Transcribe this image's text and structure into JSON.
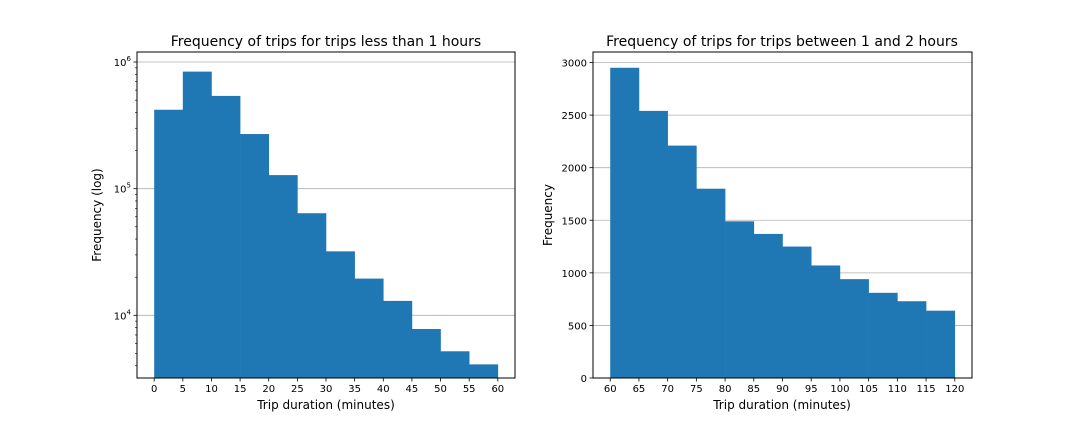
{
  "colors": {
    "bar": "#1f77b4",
    "grid": "#b0b0b0",
    "axis": "#000000"
  },
  "chart_data": [
    {
      "type": "bar",
      "title": "Frequency of trips for trips less than 1 hours",
      "xlabel": "Trip duration (minutes)",
      "ylabel": "Frequency (log)",
      "yscale": "log",
      "grid": "y-major",
      "bin_edges": [
        0,
        5,
        10,
        15,
        20,
        25,
        30,
        35,
        40,
        45,
        50,
        55,
        60
      ],
      "values": [
        420000,
        840000,
        540000,
        270000,
        128000,
        64000,
        32000,
        19500,
        13000,
        7800,
        5200,
        4100
      ],
      "xticks": [
        "0",
        "5",
        "10",
        "15",
        "20",
        "25",
        "30",
        "35",
        "40",
        "45",
        "50",
        "55",
        "60"
      ],
      "xlim": [
        -3,
        63
      ],
      "ylim": [
        3200,
        1200000
      ],
      "yticks": [
        {
          "value": 10000,
          "base": "10",
          "exp": "4"
        },
        {
          "value": 100000,
          "base": "10",
          "exp": "5"
        },
        {
          "value": 1000000,
          "base": "10",
          "exp": "6"
        }
      ]
    },
    {
      "type": "bar",
      "title": "Frequency of trips for trips between 1 and 2 hours",
      "xlabel": "Trip duration (minutes)",
      "ylabel": "Frequency",
      "yscale": "linear",
      "grid": "y-major",
      "bin_edges": [
        60,
        65,
        70,
        75,
        80,
        85,
        90,
        95,
        100,
        105,
        110,
        115,
        120
      ],
      "values": [
        2950,
        2540,
        2210,
        1800,
        1490,
        1370,
        1250,
        1070,
        940,
        810,
        730,
        640
      ],
      "xticks": [
        "60",
        "65",
        "70",
        "75",
        "80",
        "85",
        "90",
        "95",
        "100",
        "105",
        "110",
        "115",
        "120"
      ],
      "xlim": [
        57,
        123
      ],
      "ylim": [
        0,
        3100
      ],
      "yticks": [
        {
          "value": 0,
          "label": "0"
        },
        {
          "value": 500,
          "label": "500"
        },
        {
          "value": 1000,
          "label": "1000"
        },
        {
          "value": 1500,
          "label": "1500"
        },
        {
          "value": 2000,
          "label": "2000"
        },
        {
          "value": 2500,
          "label": "2500"
        },
        {
          "value": 3000,
          "label": "3000"
        }
      ]
    }
  ]
}
